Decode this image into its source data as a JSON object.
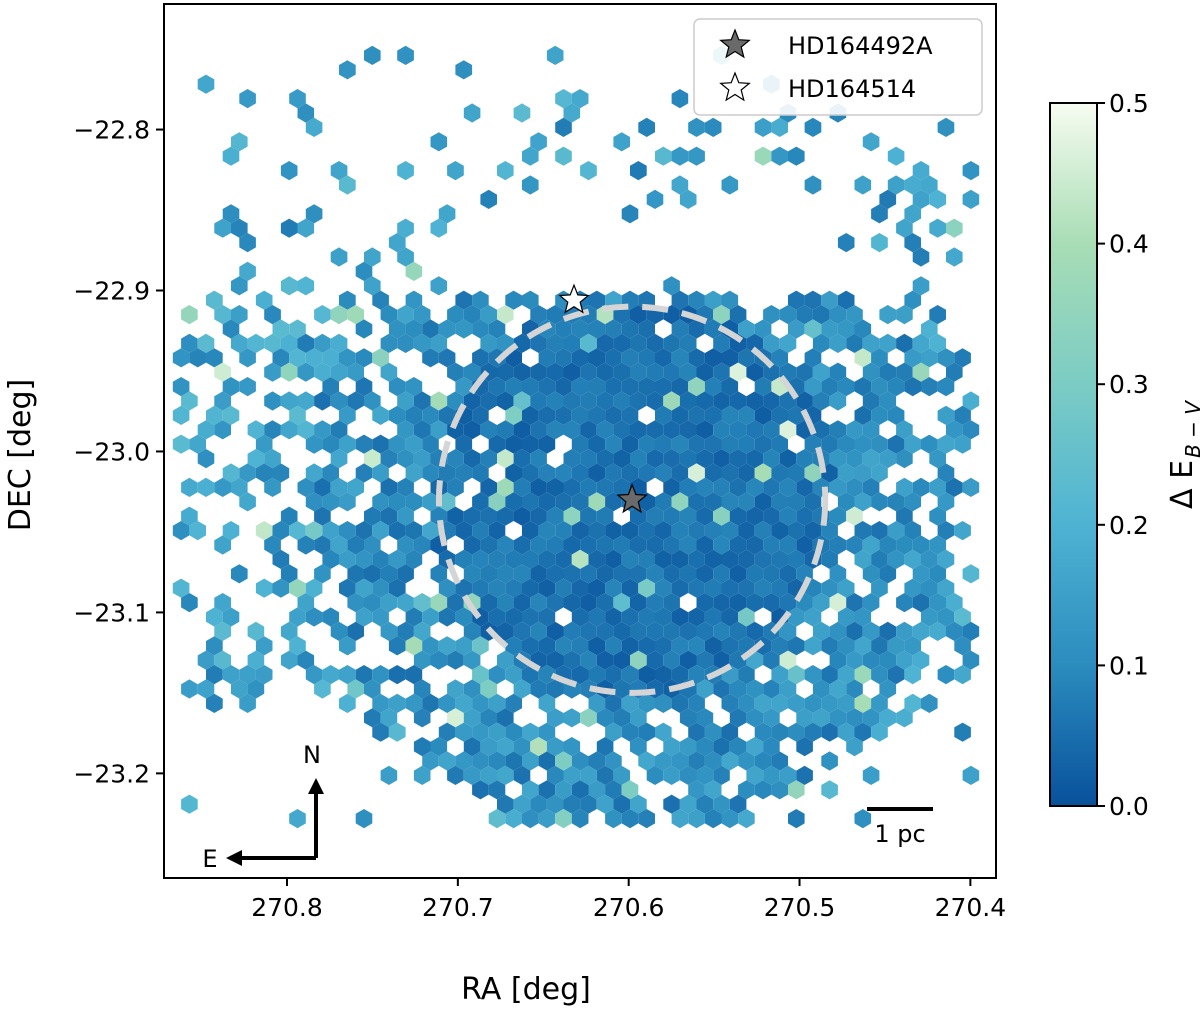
{
  "chart_data": {
    "type": "heatmap",
    "title": "",
    "xlabel": "RA [deg]",
    "ylabel": "DEC [deg]",
    "xlim": [
      270.872,
      270.385
    ],
    "ylim": [
      -23.265,
      -22.722
    ],
    "x_inverted": true,
    "x_ticks": [
      {
        "value": 270.8,
        "label": "270.8"
      },
      {
        "value": 270.7,
        "label": "270.7"
      },
      {
        "value": 270.6,
        "label": "270.6"
      },
      {
        "value": 270.5,
        "label": "270.5"
      },
      {
        "value": 270.4,
        "label": "270.4"
      }
    ],
    "y_ticks": [
      {
        "value": -22.8,
        "label": "−22.8"
      },
      {
        "value": -22.9,
        "label": "−22.9"
      },
      {
        "value": -23.0,
        "label": "−23.0"
      },
      {
        "value": -23.1,
        "label": "−23.1"
      },
      {
        "value": -23.2,
        "label": "−23.2"
      }
    ],
    "grid": false,
    "colorbar": {
      "label": "Δ E",
      "label_sub": "B − V",
      "range": [
        0.0,
        0.5
      ],
      "colormap": "GnBu_r",
      "colors": [
        "#08519c",
        "#2b8cbe",
        "#4eb3d3",
        "#7bccc4",
        "#a8ddb5",
        "#f7fcf0"
      ],
      "ticks": [
        {
          "value": 0.0,
          "label": "0.0"
        },
        {
          "value": 0.1,
          "label": "0.1"
        },
        {
          "value": 0.2,
          "label": "0.2"
        },
        {
          "value": 0.3,
          "label": "0.3"
        },
        {
          "value": 0.4,
          "label": "0.4"
        },
        {
          "value": 0.5,
          "label": "0.5"
        }
      ]
    },
    "legend": {
      "placement": "upper right",
      "entries": [
        {
          "label": "HD164492A",
          "marker": "star-filled",
          "color": "#6a6a6a"
        },
        {
          "label": "HD164514",
          "marker": "star-open",
          "color": "#ffffff"
        }
      ]
    },
    "stars": [
      {
        "name": "HD164492A",
        "ra": 270.598,
        "dec": -23.03,
        "marker": "star-filled",
        "color": "#6a6a6a"
      },
      {
        "name": "HD164514",
        "ra": 270.632,
        "dec": -22.906,
        "marker": "star-open",
        "color": "#ffffff"
      }
    ],
    "circle": {
      "center_ra": 270.598,
      "center_dec": -23.03,
      "radius_deg": 0.12,
      "style": "dashed",
      "color": "#d5d5d5"
    },
    "scale_bar": {
      "label": "1 pc"
    },
    "compass": {
      "north": "N",
      "east": "E"
    },
    "hex_region": {
      "description": "hexbin map of differential reddening; densest near the cluster center",
      "ra_range": [
        270.395,
        270.862
      ],
      "dec_range": [
        -23.235,
        -22.745
      ]
    }
  }
}
